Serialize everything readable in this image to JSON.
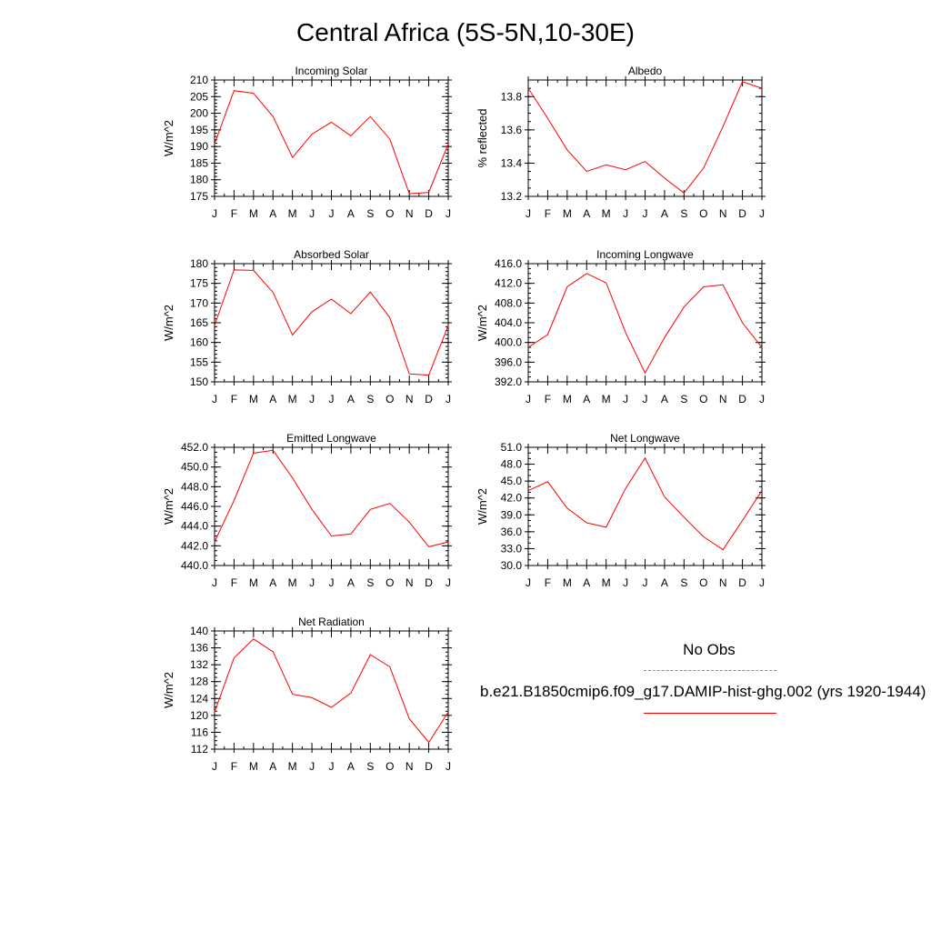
{
  "title": "Central Africa (5S-5N,10-30E)",
  "legend": {
    "obs_label": "No Obs",
    "obs_color": "#7b7bff",
    "model_label": "b.e21.B1850cmip6.f09_g17.DAMIP-hist-ghg.002 (yrs 1920-1944)",
    "model_color": "#ff0000"
  },
  "chart_data": [
    {
      "type": "line",
      "title": "Incoming Solar",
      "xlabel": "",
      "ylabel": "W/m^2",
      "categories": [
        "J",
        "F",
        "M",
        "A",
        "M",
        "J",
        "J",
        "A",
        "S",
        "O",
        "N",
        "D",
        "J"
      ],
      "ylim": [
        175,
        210
      ],
      "yticks": [
        "175",
        "180",
        "185",
        "190",
        "195",
        "200",
        "205",
        "210"
      ],
      "yminor": 1,
      "series": [
        {
          "values": [
            190.8,
            206.8,
            206.0,
            199.0,
            186.7,
            193.7,
            197.3,
            193.2,
            199.0,
            192.2,
            175.8,
            176.2,
            190.8
          ],
          "color": "#ff0000"
        }
      ]
    },
    {
      "type": "line",
      "title": "Albedo",
      "xlabel": "",
      "ylabel": "% reflected",
      "categories": [
        "J",
        "F",
        "M",
        "A",
        "M",
        "J",
        "J",
        "A",
        "S",
        "O",
        "N",
        "D",
        "J"
      ],
      "ylim": [
        13.2,
        13.9
      ],
      "yticks": [
        "13.2",
        "13.4",
        "13.6",
        "13.8"
      ],
      "yminor": 0.05,
      "series": [
        {
          "values": [
            13.85,
            13.67,
            13.48,
            13.35,
            13.39,
            13.36,
            13.41,
            13.31,
            13.22,
            13.37,
            13.62,
            13.89,
            13.85
          ],
          "color": "#ff0000"
        }
      ]
    },
    {
      "type": "line",
      "title": "Absorbed Solar",
      "xlabel": "",
      "ylabel": "W/m^2",
      "categories": [
        "J",
        "F",
        "M",
        "A",
        "M",
        "J",
        "J",
        "A",
        "S",
        "O",
        "N",
        "D",
        "J"
      ],
      "ylim": [
        150,
        180
      ],
      "yticks": [
        "150",
        "155",
        "160",
        "165",
        "170",
        "175",
        "180"
      ],
      "yminor": 1,
      "series": [
        {
          "values": [
            164.3,
            178.4,
            178.3,
            172.7,
            161.9,
            167.8,
            171.0,
            167.3,
            172.8,
            166.3,
            152.0,
            151.7,
            164.3
          ],
          "color": "#ff0000"
        }
      ]
    },
    {
      "type": "line",
      "title": "Incoming Longwave",
      "xlabel": "",
      "ylabel": "W/m^2",
      "categories": [
        "J",
        "F",
        "M",
        "A",
        "M",
        "J",
        "J",
        "A",
        "S",
        "O",
        "N",
        "D",
        "J"
      ],
      "ylim": [
        392,
        416
      ],
      "yticks": [
        "392.0",
        "396.0",
        "400.0",
        "404.0",
        "408.0",
        "412.0",
        "416.0"
      ],
      "yminor": 1,
      "series": [
        {
          "values": [
            399.0,
            401.6,
            411.3,
            414.0,
            412.1,
            402.0,
            393.8,
            401.0,
            407.2,
            411.3,
            411.7,
            404.0,
            399.0
          ],
          "color": "#ff0000"
        }
      ]
    },
    {
      "type": "line",
      "title": "Emitted Longwave",
      "xlabel": "",
      "ylabel": "W/m^2",
      "categories": [
        "J",
        "F",
        "M",
        "A",
        "M",
        "J",
        "J",
        "A",
        "S",
        "O",
        "N",
        "D",
        "J"
      ],
      "ylim": [
        440,
        452
      ],
      "yticks": [
        "440.0",
        "442.0",
        "444.0",
        "446.0",
        "448.0",
        "450.0",
        "452.0"
      ],
      "yminor": 0.5,
      "series": [
        {
          "values": [
            442.4,
            446.6,
            451.4,
            451.7,
            448.9,
            445.7,
            443.0,
            443.2,
            445.7,
            446.3,
            444.4,
            441.9,
            442.4
          ],
          "color": "#ff0000"
        }
      ]
    },
    {
      "type": "line",
      "title": "Net Longwave",
      "xlabel": "",
      "ylabel": "W/m^2",
      "categories": [
        "J",
        "F",
        "M",
        "A",
        "M",
        "J",
        "J",
        "A",
        "S",
        "O",
        "N",
        "D",
        "J"
      ],
      "ylim": [
        30,
        51
      ],
      "yticks": [
        "30.0",
        "33.0",
        "36.0",
        "39.0",
        "42.0",
        "45.0",
        "48.0",
        "51.0"
      ],
      "yminor": 1,
      "series": [
        {
          "values": [
            43.3,
            44.9,
            40.2,
            37.6,
            36.8,
            43.7,
            49.1,
            42.2,
            38.6,
            35.1,
            32.8,
            38.0,
            43.3
          ],
          "color": "#ff0000"
        }
      ]
    },
    {
      "type": "line",
      "title": "Net Radiation",
      "xlabel": "",
      "ylabel": "W/m^2",
      "categories": [
        "J",
        "F",
        "M",
        "A",
        "M",
        "J",
        "J",
        "A",
        "S",
        "O",
        "N",
        "D",
        "J"
      ],
      "ylim": [
        112,
        140
      ],
      "yticks": [
        "112",
        "116",
        "120",
        "124",
        "128",
        "132",
        "136",
        "140"
      ],
      "yminor": 1,
      "series": [
        {
          "values": [
            120.8,
            133.6,
            138.1,
            135.1,
            125.0,
            124.2,
            121.9,
            125.3,
            134.4,
            131.5,
            119.2,
            113.6,
            120.8
          ],
          "color": "#ff0000"
        }
      ]
    }
  ]
}
